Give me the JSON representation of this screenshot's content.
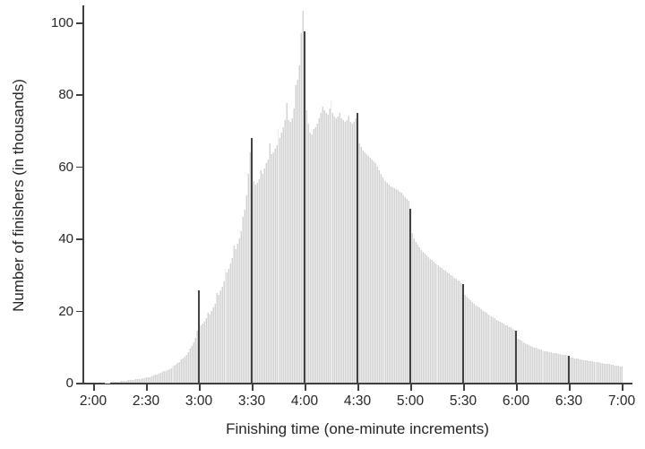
{
  "figure": {
    "background_color": "#ffffff",
    "bar_color": "#d2d2d2",
    "spike_color": "#424242",
    "axis_color": "#3f3f3f",
    "text_color": "#262626"
  },
  "chart_data": {
    "type": "bar",
    "title": "",
    "xlabel": "Finishing time (one-minute increments)",
    "ylabel": "Number of finishers (in thousands)",
    "x_start": "2:00",
    "x_end": "7:00",
    "increment_minutes": 1,
    "ylim": [
      0,
      104
    ],
    "y_ticks": [
      0,
      20,
      40,
      60,
      80,
      100
    ],
    "x_ticks": [
      "2:00",
      "2:30",
      "3:00",
      "3:30",
      "4:00",
      "4:30",
      "5:00",
      "5:30",
      "6:00",
      "6:30",
      "7:00"
    ],
    "grid": false,
    "legend": "none",
    "highlight_times": [
      "3:00",
      "3:30",
      "4:00",
      "4:30",
      "5:00",
      "5:30",
      "6:00",
      "6:30"
    ],
    "highlight_minute_indices": [
      60,
      90,
      120,
      150,
      180,
      210,
      240,
      270
    ],
    "values_thousands": [
      0,
      0,
      0,
      0,
      0,
      0,
      0,
      0.05,
      0.1,
      0.1,
      0.15,
      0.2,
      0.2,
      0.25,
      0.3,
      0.35,
      0.4,
      0.45,
      0.5,
      0.55,
      0.65,
      0.7,
      0.75,
      0.8,
      0.9,
      1.0,
      1.05,
      1.1,
      1.2,
      1.3,
      1.6,
      1.5,
      1.6,
      1.75,
      1.9,
      2.2,
      2.3,
      2.5,
      2.7,
      2.9,
      3.3,
      3.3,
      3.5,
      3.8,
      4.0,
      4.6,
      4.7,
      5.0,
      5.4,
      5.8,
      6.5,
      6.8,
      7.3,
      7.8,
      8.4,
      9.5,
      10.2,
      11.2,
      12.5,
      14.5,
      25.5,
      16.0,
      16.5,
      17.0,
      17.8,
      19.5,
      19.0,
      20.0,
      21.0,
      22.0,
      25.0,
      24.5,
      25.5,
      26.5,
      28.0,
      31.5,
      30.5,
      31.5,
      33.0,
      34.5,
      38.0,
      37.0,
      38.5,
      40.0,
      42.0,
      46.0,
      48.0,
      52.0,
      58.0,
      64.0,
      68.0,
      56.0,
      55.0,
      55.5,
      56.5,
      59.0,
      58.0,
      59.5,
      61.0,
      62.0,
      66.5,
      63.5,
      64.0,
      65.0,
      66.0,
      70.5,
      68.0,
      69.5,
      71.0,
      73.0,
      77.5,
      73.0,
      72.5,
      73.5,
      76.0,
      82.5,
      84.0,
      88.0,
      97.0,
      103.3,
      97.5,
      75.5,
      72.0,
      69.5,
      69.0,
      70.5,
      71.0,
      72.0,
      73.5,
      75.0,
      76.5,
      75.5,
      75.0,
      74.5,
      76.0,
      78.3,
      75.0,
      74.0,
      73.5,
      74.0,
      75.0,
      73.5,
      73.0,
      72.5,
      73.0,
      74.2,
      72.5,
      72.0,
      72.5,
      73.5,
      74.8,
      66.5,
      65.5,
      64.5,
      64.0,
      63.5,
      63.0,
      62.5,
      62.0,
      61.5,
      61.0,
      60.0,
      59.0,
      58.0,
      57.0,
      56.5,
      56.0,
      55.5,
      55.0,
      54.5,
      54.3,
      54.0,
      53.8,
      53.5,
      53.0,
      52.7,
      52.0,
      51.5,
      51.0,
      50.5,
      48.3,
      41.5,
      40.0,
      39.0,
      38.2,
      37.5,
      36.8,
      36.2,
      35.7,
      35.2,
      34.8,
      34.4,
      34.0,
      33.6,
      33.2,
      32.9,
      32.5,
      32.1,
      31.8,
      31.4,
      31.1,
      30.7,
      30.3,
      29.9,
      29.5,
      29.2,
      28.8,
      28.4,
      28.0,
      27.5,
      27.3,
      24.5,
      24.0,
      23.5,
      23.0,
      22.5,
      22.0,
      21.5,
      21.2,
      20.8,
      20.4,
      20.0,
      19.7,
      19.4,
      19.0,
      18.7,
      18.4,
      18.1,
      17.8,
      17.5,
      17.2,
      16.9,
      16.6,
      16.3,
      16.0,
      15.8,
      15.5,
      15.3,
      15.0,
      14.8,
      14.5,
      12.3,
      11.9,
      11.6,
      11.3,
      11.0,
      10.7,
      10.4,
      10.2,
      10.0,
      9.8,
      9.6,
      9.4,
      9.3,
      9.1,
      9.0,
      8.8,
      8.7,
      8.6,
      8.5,
      8.4,
      8.3,
      8.2,
      8.1,
      8.0,
      7.9,
      7.8,
      7.7,
      7.6,
      7.5,
      7.5,
      7.0,
      6.9,
      6.8,
      6.7,
      6.6,
      6.5,
      6.4,
      6.3,
      6.2,
      6.1,
      6.0,
      6.0,
      5.9,
      5.8,
      5.7,
      5.6,
      5.6,
      5.5,
      5.4,
      5.3,
      5.2,
      5.2,
      5.1,
      5.0,
      4.9,
      4.8,
      4.8,
      4.7,
      4.6,
      4.5
    ]
  }
}
